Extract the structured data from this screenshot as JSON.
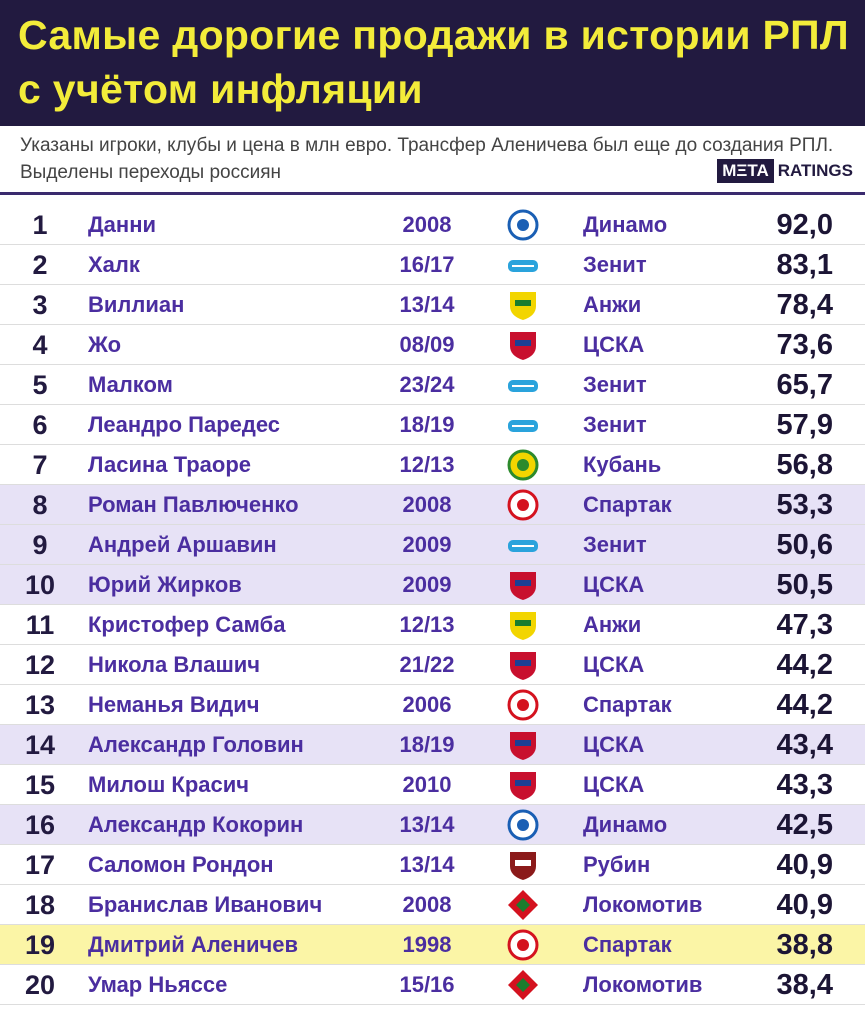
{
  "header": {
    "title": "Самые дорогие продажи в истории РПЛ с учётом инфляции",
    "subtitle": "Указаны игроки, клубы и цена в млн евро. Трансфер Аленичева был еще до создания РПЛ. Выделены переходы россиян",
    "logo": {
      "brand": "MΞTA",
      "suffix": "RATINGS"
    }
  },
  "table": {
    "rows": [
      [
        "1",
        "Данни",
        "2008",
        "Динамо",
        "92,0"
      ],
      [
        "2",
        "Халк",
        "16/17",
        "Зенит",
        "83,1"
      ],
      [
        "3",
        "Виллиан",
        "13/14",
        "Анжи",
        "78,4"
      ],
      [
        "4",
        "Жо",
        "08/09",
        "ЦСКА",
        "73,6"
      ],
      [
        "5",
        "Малком",
        "23/24",
        "Зенит",
        "65,7"
      ],
      [
        "6",
        "Леандро Паредес",
        "18/19",
        "Зенит",
        "57,9"
      ],
      [
        "7",
        "Ласина Траоре",
        "12/13",
        "Кубань",
        "56,8"
      ],
      [
        "8",
        "Роман Павлюченко",
        "2008",
        "Спартак",
        "53,3"
      ],
      [
        "9",
        "Андрей Аршавин",
        "2009",
        "Зенит",
        "50,6"
      ],
      [
        "10",
        "Юрий Жирков",
        "2009",
        "ЦСКА",
        "50,5"
      ],
      [
        "11",
        "Кристофер Самба",
        "12/13",
        "Анжи",
        "47,3"
      ],
      [
        "12",
        "Никола Влашич",
        "21/22",
        "ЦСКА",
        "44,2"
      ],
      [
        "13",
        "Неманья Видич",
        "2006",
        "Спартак",
        "44,2"
      ],
      [
        "14",
        "Александр Головин",
        "18/19",
        "ЦСКА",
        "43,4"
      ],
      [
        "15",
        "Милош Красич",
        "2010",
        "ЦСКА",
        "43,3"
      ],
      [
        "16",
        "Александр Кокорин",
        "13/14",
        "Динамо",
        "42,5"
      ],
      [
        "17",
        "Саломон Рондон",
        "13/14",
        "Рубин",
        "40,9"
      ],
      [
        "18",
        "Бранислав Иванович",
        "2008",
        "Локомотив",
        "40,9"
      ],
      [
        "19",
        "Дмитрий Аленичев",
        "1998",
        "Спартак",
        "38,8"
      ],
      [
        "20",
        "Умар Ньяссе",
        "15/16",
        "Локомотив",
        "38,4"
      ]
    ]
  }
}
